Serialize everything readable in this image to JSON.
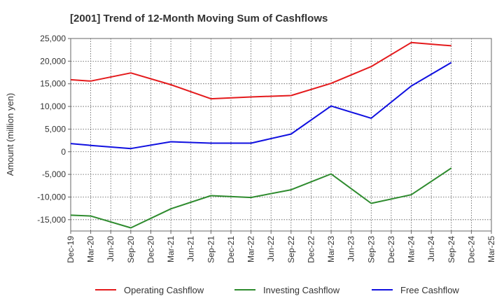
{
  "chart_data": {
    "type": "line",
    "title": "[2001]  Trend of 12-Month Moving Sum of Cashflows",
    "ylabel": "Amount (million yen)",
    "xlabel": "",
    "ylim": [
      -17500,
      25000
    ],
    "y_ticks": [
      25000,
      20000,
      15000,
      10000,
      5000,
      0,
      -5000,
      -10000,
      -15000
    ],
    "y_tick_labels": [
      "25,000",
      "20,000",
      "15,000",
      "10,000",
      "5,000",
      "0",
      "-5,000",
      "-10,000",
      "-15,000"
    ],
    "categories": [
      "Dec-19",
      "Mar-20",
      "Jun-20",
      "Sep-20",
      "Dec-20",
      "Mar-21",
      "Jun-21",
      "Sep-21",
      "Dec-21",
      "Mar-22",
      "Jun-22",
      "Sep-22",
      "Dec-22",
      "Mar-23",
      "Jun-23",
      "Sep-23",
      "Dec-23",
      "Mar-24",
      "Jun-24",
      "Sep-24",
      "Dec-24",
      "Mar-25"
    ],
    "x_tick_labels": [
      "Dec-19",
      "Mar-20",
      "Jun-20",
      "Sep-20",
      "Dec-20",
      "Mar-21",
      "Jun-21",
      "Sep-21",
      "Dec-21",
      "Mar-22",
      "Jun-22",
      "Sep-22",
      "Dec-22",
      "Mar-23",
      "Jun-23",
      "Sep-23",
      "Dec-23",
      "Mar-24",
      "Jun-24",
      "Sep-24",
      "Dec-24",
      "Mar-25"
    ],
    "grid": true,
    "legend_position": "bottom",
    "series": [
      {
        "name": "Operating Cashflow",
        "color": "#e41a1c",
        "values": [
          15900,
          15600,
          null,
          17400,
          null,
          14800,
          null,
          11700,
          null,
          12100,
          null,
          12400,
          null,
          15100,
          null,
          18800,
          null,
          24100,
          null,
          23400,
          null,
          null
        ]
      },
      {
        "name": "Investing Cashflow",
        "color": "#2e8b2e",
        "values": [
          -14000,
          -14200,
          null,
          -16800,
          null,
          -12600,
          null,
          -9700,
          null,
          -10100,
          null,
          -8400,
          null,
          -4900,
          null,
          -11400,
          null,
          -9500,
          null,
          -3600,
          null,
          null
        ]
      },
      {
        "name": "Free Cashflow",
        "color": "#1010e0",
        "values": [
          1800,
          1400,
          null,
          700,
          null,
          2200,
          null,
          1900,
          null,
          1900,
          null,
          3900,
          null,
          10100,
          null,
          7400,
          null,
          14500,
          null,
          19700,
          null,
          null
        ]
      }
    ]
  }
}
